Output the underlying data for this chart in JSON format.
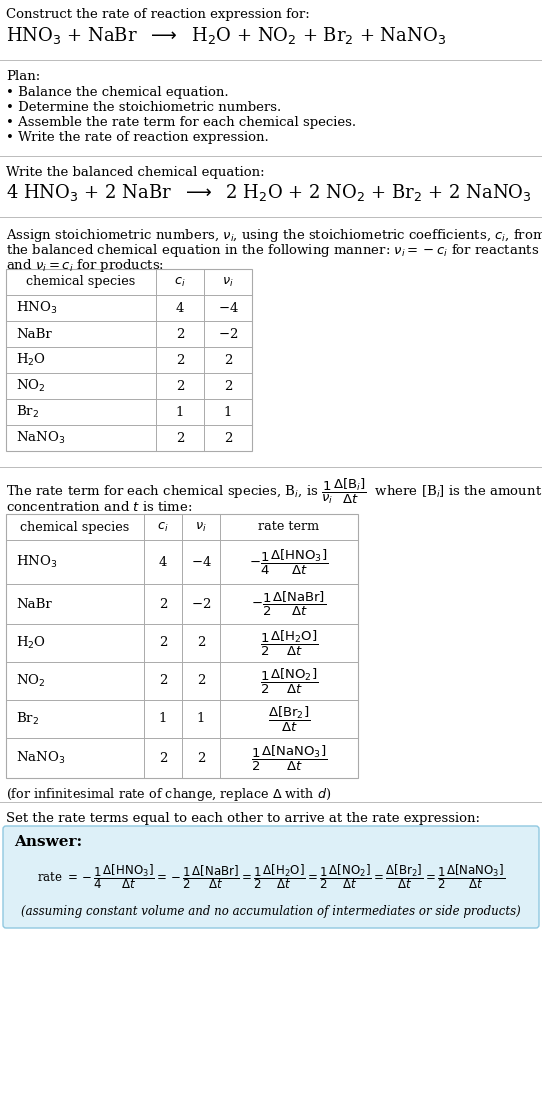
{
  "title_line1": "Construct the rate of reaction expression for:",
  "reaction_unbalanced": "HNO$_3$ + NaBr  $\\longrightarrow$  H$_2$O + NO$_2$ + Br$_2$ + NaNO$_3$",
  "plan_header": "Plan:",
  "plan_items": [
    "• Balance the chemical equation.",
    "• Determine the stoichiometric numbers.",
    "• Assemble the rate term for each chemical species.",
    "• Write the rate of reaction expression."
  ],
  "balanced_header": "Write the balanced chemical equation:",
  "balanced_eq": "4 HNO$_3$ + 2 NaBr  $\\longrightarrow$  2 H$_2$O + 2 NO$_2$ + Br$_2$ + 2 NaNO$_3$",
  "stoich_intro1": "Assign stoichiometric numbers, $\\nu_i$, using the stoichiometric coefficients, $c_i$, from",
  "stoich_intro2": "the balanced chemical equation in the following manner: $\\nu_i = -c_i$ for reactants",
  "stoich_intro3": "and $\\nu_i = c_i$ for products:",
  "table1_headers": [
    "chemical species",
    "$c_i$",
    "$\\nu_i$"
  ],
  "table1_rows": [
    [
      "HNO$_3$",
      "4",
      "$-$4"
    ],
    [
      "NaBr",
      "2",
      "$-$2"
    ],
    [
      "H$_2$O",
      "2",
      "2"
    ],
    [
      "NO$_2$",
      "2",
      "2"
    ],
    [
      "Br$_2$",
      "1",
      "1"
    ],
    [
      "NaNO$_3$",
      "2",
      "2"
    ]
  ],
  "rate_intro1": "The rate term for each chemical species, B$_i$, is $\\dfrac{1}{\\nu_i}\\dfrac{\\Delta[\\mathrm{B}_i]}{\\Delta t}$  where [B$_i$] is the amount",
  "rate_intro2": "concentration and $t$ is time:",
  "table2_headers": [
    "chemical species",
    "$c_i$",
    "$\\nu_i$",
    "rate term"
  ],
  "table2_rows": [
    [
      "HNO$_3$",
      "4",
      "$-$4",
      "$-\\dfrac{1}{4}\\dfrac{\\Delta[\\mathrm{HNO_3}]}{\\Delta t}$"
    ],
    [
      "NaBr",
      "2",
      "$-$2",
      "$-\\dfrac{1}{2}\\dfrac{\\Delta[\\mathrm{NaBr}]}{\\Delta t}$"
    ],
    [
      "H$_2$O",
      "2",
      "2",
      "$\\dfrac{1}{2}\\dfrac{\\Delta[\\mathrm{H_2O}]}{\\Delta t}$"
    ],
    [
      "NO$_2$",
      "2",
      "2",
      "$\\dfrac{1}{2}\\dfrac{\\Delta[\\mathrm{NO_2}]}{\\Delta t}$"
    ],
    [
      "Br$_2$",
      "1",
      "1",
      "$\\dfrac{\\Delta[\\mathrm{Br_2}]}{\\Delta t}$"
    ],
    [
      "NaNO$_3$",
      "2",
      "2",
      "$\\dfrac{1}{2}\\dfrac{\\Delta[\\mathrm{NaNO_3}]}{\\Delta t}$"
    ]
  ],
  "infinitesimal_note": "(for infinitesimal rate of change, replace $\\Delta$ with $d$)",
  "set_equal_text": "Set the rate terms equal to each other to arrive at the rate expression:",
  "answer_label": "Answer:",
  "answer_box_color": "#ddf0f8",
  "answer_border_color": "#90c8e0",
  "rate_expr_parts": [
    "rate $= -\\dfrac{1}{4}\\dfrac{\\Delta[\\mathrm{HNO_3}]}{\\Delta t} = -\\dfrac{1}{2}\\dfrac{\\Delta[\\mathrm{NaBr}]}{\\Delta t} = \\dfrac{1}{2}\\dfrac{\\Delta[\\mathrm{H_2O}]}{\\Delta t} = \\dfrac{1}{2}\\dfrac{\\Delta[\\mathrm{NO_2}]}{\\Delta t} = \\dfrac{\\Delta[\\mathrm{Br_2}]}{\\Delta t} = \\dfrac{1}{2}\\dfrac{\\Delta[\\mathrm{NaNO_3}]}{\\Delta t}$"
  ],
  "assuming_note": "(assuming constant volume and no accumulation of intermediates or side products)",
  "bg_color": "#ffffff",
  "text_color": "#000000",
  "table_border_color": "#aaaaaa",
  "separator_color": "#bbbbbb"
}
